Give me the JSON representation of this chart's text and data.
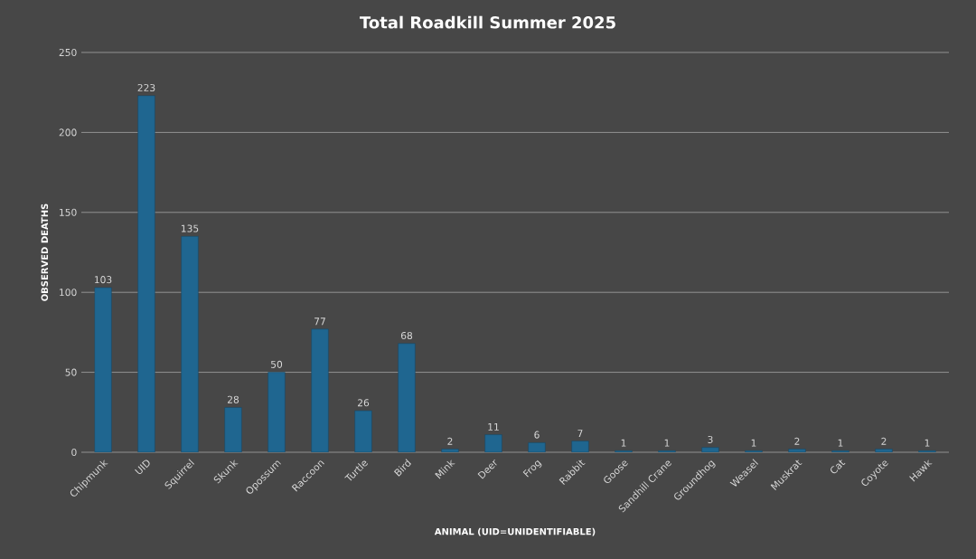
{
  "chart_data": {
    "type": "bar",
    "title": "Total Roadkill Summer 2025",
    "xlabel": "ANIMAL (UID=UNIDENTIFIABLE)",
    "ylabel": "OBSERVED DEATHS",
    "categories": [
      "Chipmunk",
      "UID",
      "Squirrel",
      "Skunk",
      "Opossum",
      "Raccoon",
      "Turtle",
      "Bird",
      "Mink",
      "Deer",
      "Frog",
      "Rabbit",
      "Goose",
      "Sandhill Crane",
      "Groundhog",
      "Weasel",
      "Muskrat",
      "Cat",
      "Coyote",
      "Hawk"
    ],
    "values": [
      103,
      223,
      135,
      28,
      50,
      77,
      26,
      68,
      2,
      11,
      6,
      7,
      1,
      1,
      3,
      1,
      2,
      1,
      2,
      1
    ],
    "color": "#1f6690",
    "ylim": [
      0,
      250
    ],
    "yticks": [
      0,
      50,
      100,
      150,
      200,
      250
    ],
    "grid": "y",
    "data_labels": true
  }
}
